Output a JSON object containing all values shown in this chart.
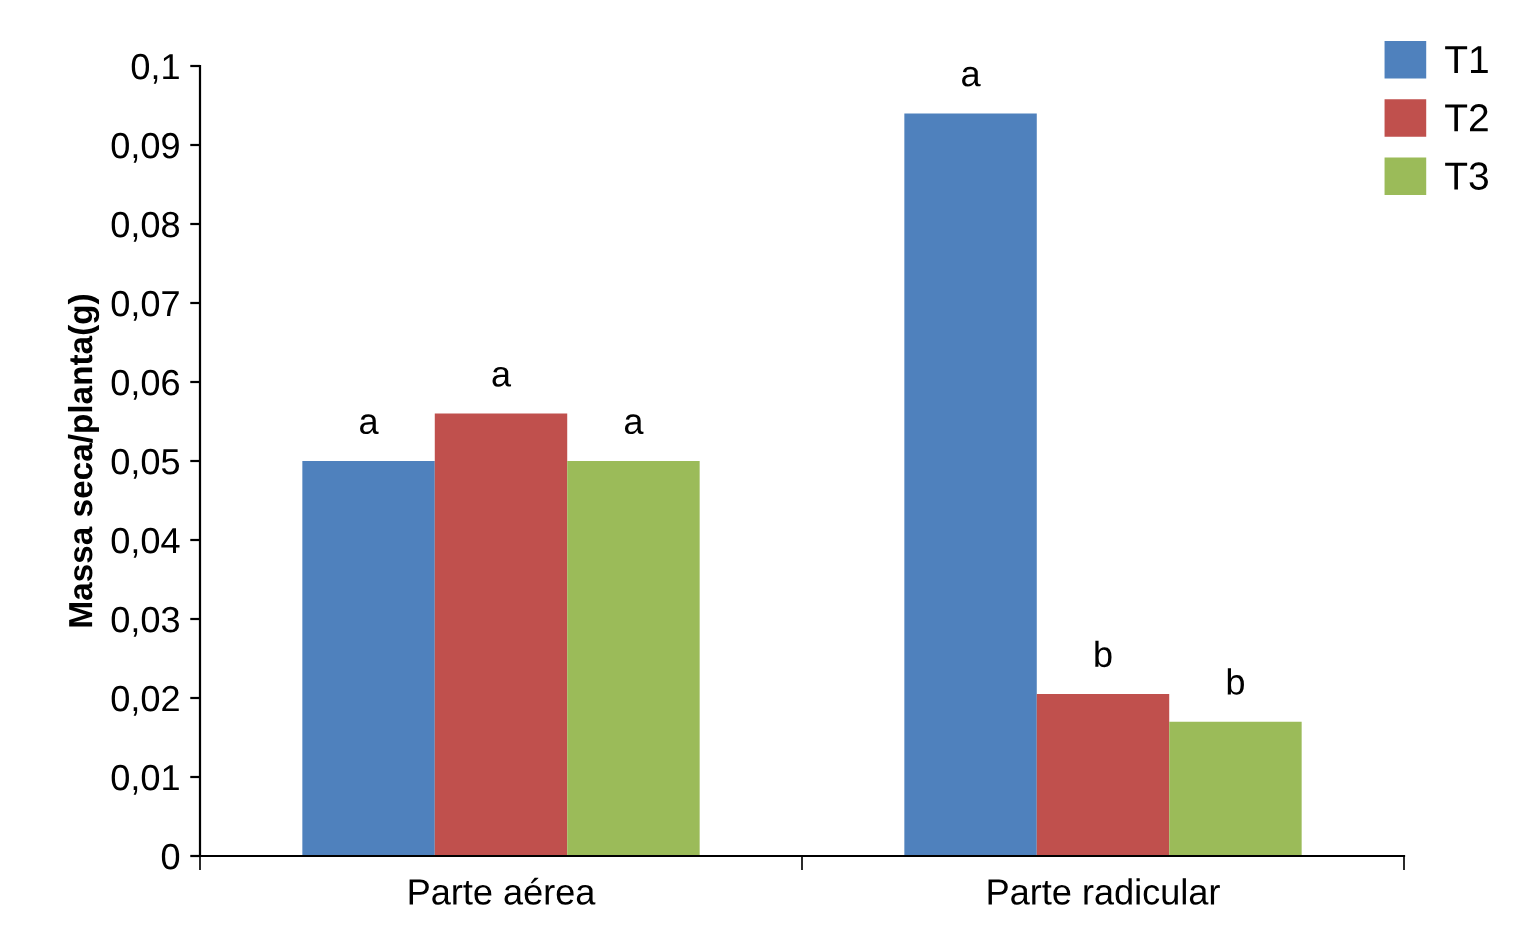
{
  "chart_data": {
    "type": "bar",
    "ylabel": "Massa seca/planta(g)",
    "categories": [
      "Parte aérea",
      "Parte radicular"
    ],
    "series": [
      {
        "name": "T1",
        "color": "#4f81bd",
        "values": [
          0.05,
          0.094
        ]
      },
      {
        "name": "T2",
        "color": "#c0504d",
        "values": [
          0.056,
          0.0205
        ]
      },
      {
        "name": "T3",
        "color": "#9bbb59",
        "values": [
          0.05,
          0.017
        ]
      }
    ],
    "ylim": [
      0,
      0.1
    ],
    "yticks": [
      0,
      {
        "value": 0.01,
        "label": "0,01"
      },
      {
        "value": 0.02,
        "label": "0,02"
      },
      {
        "value": 0.03,
        "label": "0,03"
      },
      {
        "value": 0.04,
        "label": "0,04"
      },
      {
        "value": 0.05,
        "label": "0,05"
      },
      {
        "value": 0.06,
        "label": "0,06"
      },
      {
        "value": 0.07,
        "label": "0,07"
      },
      {
        "value": 0.08,
        "label": "0,08"
      },
      {
        "value": 0.09,
        "label": "0,09"
      },
      {
        "value": 0.1,
        "label": "0,1"
      }
    ],
    "annotations": [
      "a",
      "a",
      "a",
      "a",
      "b",
      "b"
    ],
    "grid": false,
    "legend": "top right"
  }
}
